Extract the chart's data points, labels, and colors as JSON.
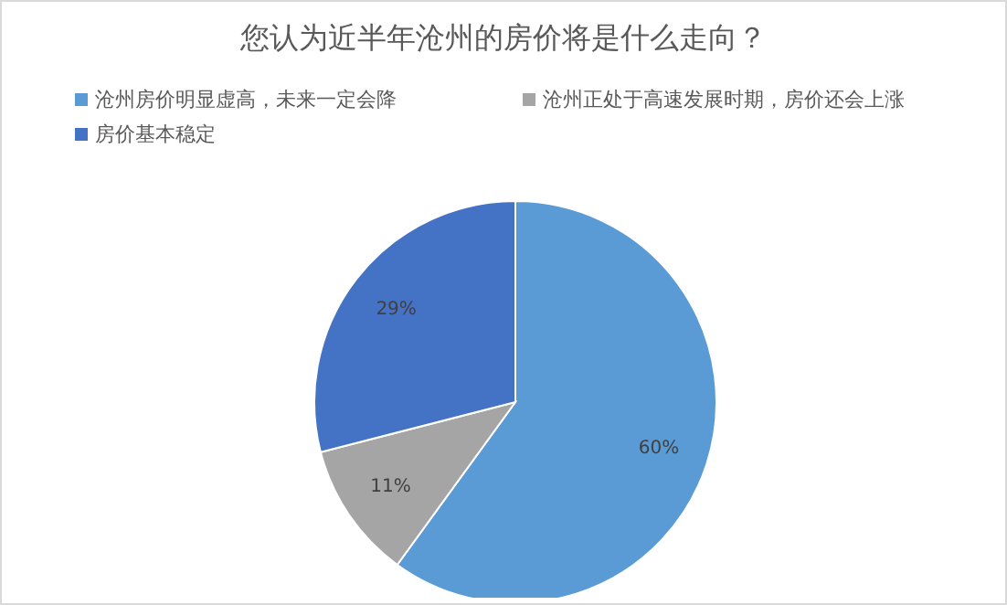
{
  "chart_data": {
    "type": "pie",
    "title": "您认为近半年沧州的房价将是什么走向？",
    "categories": [
      "沧州房价明显虚高，未来一定会降",
      "沧州正处于高速发展时期，房价还会上涨",
      "房价基本稳定"
    ],
    "values": [
      60,
      11,
      29
    ],
    "colors": [
      "#5b9bd5",
      "#a5a5a5",
      "#4472c4"
    ],
    "value_labels": [
      "60%",
      "11%",
      "29%"
    ],
    "legend": "top"
  }
}
